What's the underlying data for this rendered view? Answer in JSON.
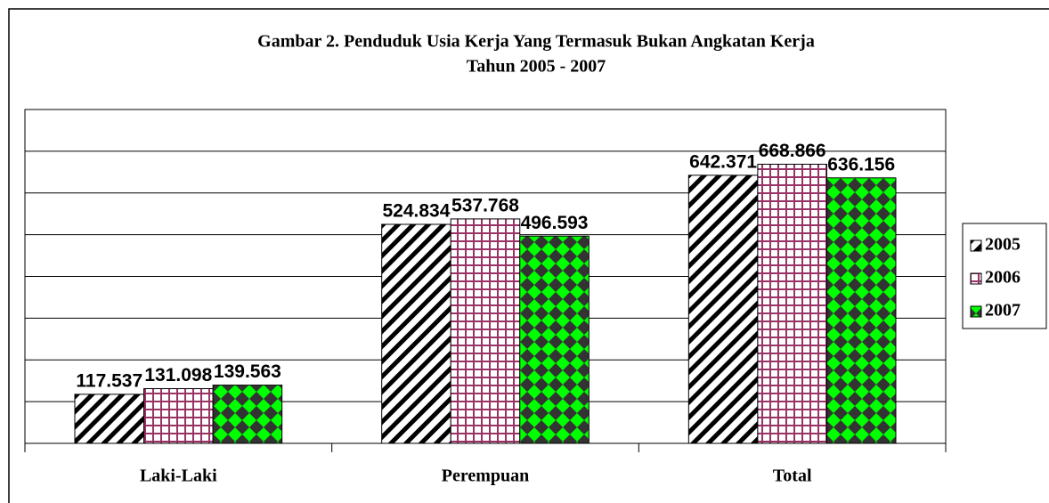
{
  "chart_data": {
    "type": "bar",
    "title": [
      "Gambar 2. Penduduk Usia Kerja Yang Termasuk Bukan Angkatan Kerja",
      "Tahun 2005 - 2007"
    ],
    "categories": [
      "Laki-Laki",
      "Perempuan",
      "Total"
    ],
    "series": [
      {
        "name": "2005",
        "color": "#000000",
        "pattern": "stripes",
        "values": [
          117537,
          524834,
          642371
        ],
        "value_labels": [
          "117.537",
          "524.834",
          "642.371"
        ]
      },
      {
        "name": "2006",
        "color": "#993366",
        "pattern": "grid",
        "values": [
          131098,
          537768,
          668866
        ],
        "value_labels": [
          "131.098",
          "537.768",
          "668.866"
        ]
      },
      {
        "name": "2007",
        "color": "#00ff00",
        "pattern": "diamonds",
        "values": [
          139563,
          496593,
          636156
        ],
        "value_labels": [
          "139.563",
          "496.593",
          "636.156"
        ]
      }
    ],
    "ylim": [
      0,
      800000
    ],
    "yticks": [
      0,
      100000,
      200000,
      300000,
      400000,
      500000,
      600000,
      700000,
      800000
    ],
    "grid": true,
    "legend": "right"
  }
}
